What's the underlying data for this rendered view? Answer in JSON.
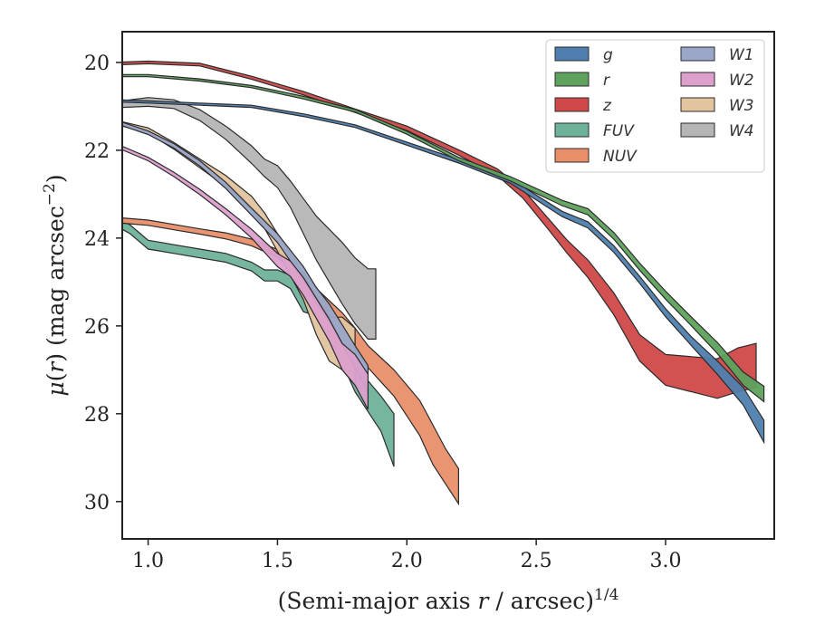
{
  "chart_data": {
    "type": "area",
    "title": "",
    "xlabel": "(Semi-major axis r / arcsec)^{1/4}",
    "ylabel": "μ(r) (mag arcsec^{−2})",
    "xlim": [
      0.9,
      3.42
    ],
    "ylim": [
      30.85,
      19.3
    ],
    "y_inverted": true,
    "grid": false,
    "legend_position": "top-right",
    "legend_columns": 2,
    "x_ticks": [
      {
        "v": 1.0,
        "label": "1.0"
      },
      {
        "v": 1.5,
        "label": "1.5"
      },
      {
        "v": 2.0,
        "label": "2.0"
      },
      {
        "v": 2.5,
        "label": "2.5"
      },
      {
        "v": 3.0,
        "label": "3.0"
      }
    ],
    "y_ticks": [
      {
        "v": 20,
        "label": "20"
      },
      {
        "v": 22,
        "label": "22"
      },
      {
        "v": 24,
        "label": "24"
      },
      {
        "v": 26,
        "label": "26"
      },
      {
        "v": 28,
        "label": "28"
      },
      {
        "v": 30,
        "label": "30"
      }
    ],
    "series": [
      {
        "name": "FUV",
        "color": "#6fb29a",
        "x": [
          0.9,
          0.93,
          0.97,
          1.0,
          1.05,
          1.1,
          1.2,
          1.3,
          1.35,
          1.4,
          1.45,
          1.5,
          1.55,
          1.6,
          1.65,
          1.7,
          1.75,
          1.8,
          1.85,
          1.9,
          1.95
        ],
        "y": [
          23.7,
          23.8,
          24.0,
          24.15,
          24.2,
          24.25,
          24.35,
          24.45,
          24.55,
          24.65,
          24.85,
          24.85,
          25.0,
          25.5,
          25.6,
          25.9,
          26.6,
          27.2,
          27.6,
          28.0,
          28.6
        ],
        "band": [
          0.2,
          0.2,
          0.2,
          0.2,
          0.2,
          0.2,
          0.2,
          0.2,
          0.2,
          0.2,
          0.25,
          0.25,
          0.3,
          0.35,
          0.35,
          0.4,
          0.5,
          0.6,
          0.7,
          0.8,
          1.2
        ]
      },
      {
        "name": "NUV",
        "color": "#e88f6a",
        "x": [
          0.9,
          1.0,
          1.1,
          1.2,
          1.3,
          1.4,
          1.5,
          1.55,
          1.6,
          1.65,
          1.7,
          1.75,
          1.8,
          1.85,
          1.9,
          1.95,
          2.0,
          2.05,
          2.1,
          2.15,
          2.2
        ],
        "y": [
          23.6,
          23.65,
          23.75,
          23.85,
          23.95,
          24.1,
          24.35,
          24.6,
          24.9,
          25.3,
          25.6,
          25.9,
          26.3,
          26.7,
          27.0,
          27.3,
          27.7,
          28.1,
          28.7,
          29.2,
          29.65
        ],
        "band": [
          0.12,
          0.12,
          0.12,
          0.12,
          0.14,
          0.15,
          0.18,
          0.2,
          0.25,
          0.3,
          0.35,
          0.4,
          0.5,
          0.5,
          0.55,
          0.6,
          0.7,
          0.8,
          0.9,
          0.8,
          0.8
        ]
      },
      {
        "name": "W4",
        "color": "#b5b5b5",
        "x": [
          0.9,
          1.0,
          1.1,
          1.2,
          1.3,
          1.4,
          1.45,
          1.5,
          1.55,
          1.6,
          1.65,
          1.7,
          1.75,
          1.8,
          1.85,
          1.88
        ],
        "y": [
          20.95,
          20.9,
          20.95,
          21.2,
          21.6,
          22.1,
          22.4,
          22.6,
          23.0,
          23.5,
          24.0,
          24.4,
          24.8,
          25.2,
          25.5,
          25.5
        ],
        "band": [
          0.15,
          0.2,
          0.2,
          0.25,
          0.3,
          0.4,
          0.4,
          0.5,
          0.6,
          0.8,
          1.0,
          1.2,
          1.4,
          1.5,
          1.6,
          1.6
        ]
      },
      {
        "name": "W3",
        "color": "#e2c49f",
        "x": [
          0.9,
          1.0,
          1.1,
          1.2,
          1.3,
          1.4,
          1.45,
          1.5,
          1.55,
          1.6,
          1.65,
          1.7,
          1.75,
          1.8
        ],
        "y": [
          21.4,
          21.55,
          21.9,
          22.3,
          22.7,
          23.2,
          23.6,
          24.1,
          24.6,
          25.1,
          25.8,
          26.3,
          26.4,
          26.7
        ],
        "band": [
          0.1,
          0.12,
          0.15,
          0.2,
          0.25,
          0.3,
          0.35,
          0.4,
          0.5,
          0.6,
          0.8,
          1.0,
          1.2,
          1.3
        ]
      },
      {
        "name": "W1",
        "color": "#9aa7c8",
        "x": [
          0.9,
          1.0,
          1.1,
          1.2,
          1.3,
          1.4,
          1.5,
          1.55,
          1.6,
          1.65,
          1.7,
          1.75,
          1.8,
          1.85
        ],
        "y": [
          21.4,
          21.6,
          21.9,
          22.3,
          22.8,
          23.4,
          24.0,
          24.4,
          24.8,
          25.3,
          25.7,
          26.2,
          26.7,
          27.2
        ],
        "band": [
          0.08,
          0.08,
          0.1,
          0.12,
          0.14,
          0.16,
          0.2,
          0.25,
          0.3,
          0.35,
          0.4,
          0.45,
          0.5,
          0.6
        ]
      },
      {
        "name": "W2",
        "color": "#dba0cc",
        "x": [
          0.9,
          1.0,
          1.1,
          1.2,
          1.3,
          1.4,
          1.45,
          1.5,
          1.55,
          1.6,
          1.65,
          1.7,
          1.75,
          1.8,
          1.85
        ],
        "y": [
          21.95,
          22.2,
          22.55,
          22.95,
          23.4,
          23.9,
          24.2,
          24.5,
          24.7,
          25.1,
          25.6,
          26.1,
          26.7,
          27.0,
          27.5
        ],
        "band": [
          0.08,
          0.08,
          0.1,
          0.12,
          0.14,
          0.2,
          0.25,
          0.3,
          0.35,
          0.4,
          0.45,
          0.5,
          0.6,
          0.7,
          0.8
        ]
      },
      {
        "name": "z",
        "color": "#d04848",
        "x": [
          0.9,
          1.0,
          1.2,
          1.4,
          1.6,
          1.8,
          2.0,
          2.2,
          2.35,
          2.45,
          2.55,
          2.62,
          2.7,
          2.8,
          2.9,
          3.0,
          3.1,
          3.2,
          3.28,
          3.35
        ],
        "y": [
          20.02,
          20.0,
          20.05,
          20.35,
          20.7,
          21.1,
          21.5,
          22.05,
          22.5,
          23.0,
          23.7,
          24.2,
          24.7,
          25.5,
          26.5,
          27.0,
          27.1,
          27.2,
          27.0,
          26.9
        ],
        "band": [
          0.06,
          0.06,
          0.06,
          0.07,
          0.08,
          0.08,
          0.1,
          0.12,
          0.15,
          0.2,
          0.25,
          0.3,
          0.4,
          0.5,
          0.6,
          0.7,
          0.8,
          0.9,
          1.0,
          1.0
        ]
      },
      {
        "name": "g",
        "color": "#4f7fae",
        "x": [
          0.9,
          1.0,
          1.2,
          1.4,
          1.6,
          1.8,
          2.0,
          2.2,
          2.4,
          2.6,
          2.7,
          2.8,
          2.9,
          3.0,
          3.1,
          3.2,
          3.3,
          3.38
        ],
        "y": [
          20.88,
          20.9,
          20.95,
          21.0,
          21.2,
          21.45,
          21.85,
          22.25,
          22.7,
          23.45,
          23.7,
          24.25,
          24.95,
          25.7,
          26.35,
          26.95,
          27.6,
          28.4
        ],
        "band": [
          0.05,
          0.05,
          0.05,
          0.05,
          0.06,
          0.06,
          0.07,
          0.08,
          0.1,
          0.12,
          0.14,
          0.15,
          0.16,
          0.18,
          0.2,
          0.3,
          0.4,
          0.5
        ]
      },
      {
        "name": "r",
        "color": "#5ea25e",
        "x": [
          0.9,
          1.0,
          1.2,
          1.4,
          1.6,
          1.8,
          2.0,
          2.2,
          2.4,
          2.6,
          2.7,
          2.8,
          2.9,
          3.0,
          3.1,
          3.2,
          3.3,
          3.38
        ],
        "y": [
          20.3,
          20.3,
          20.4,
          20.55,
          20.8,
          21.1,
          21.6,
          22.2,
          22.65,
          23.2,
          23.4,
          23.95,
          24.65,
          25.3,
          25.9,
          26.5,
          27.2,
          27.55
        ],
        "band": [
          0.05,
          0.05,
          0.05,
          0.05,
          0.06,
          0.06,
          0.07,
          0.08,
          0.1,
          0.12,
          0.14,
          0.15,
          0.16,
          0.18,
          0.2,
          0.25,
          0.3,
          0.35
        ]
      }
    ],
    "legend": [
      {
        "label": "g",
        "color": "#4f7fae"
      },
      {
        "label": "r",
        "color": "#5ea25e"
      },
      {
        "label": "z",
        "color": "#d04848"
      },
      {
        "label": "FUV",
        "color": "#6fb29a"
      },
      {
        "label": "NUV",
        "color": "#e88f6a"
      },
      {
        "label": "W1",
        "color": "#9aa7c8"
      },
      {
        "label": "W2",
        "color": "#dba0cc"
      },
      {
        "label": "W3",
        "color": "#e2c49f"
      },
      {
        "label": "W4",
        "color": "#b5b5b5"
      }
    ]
  }
}
